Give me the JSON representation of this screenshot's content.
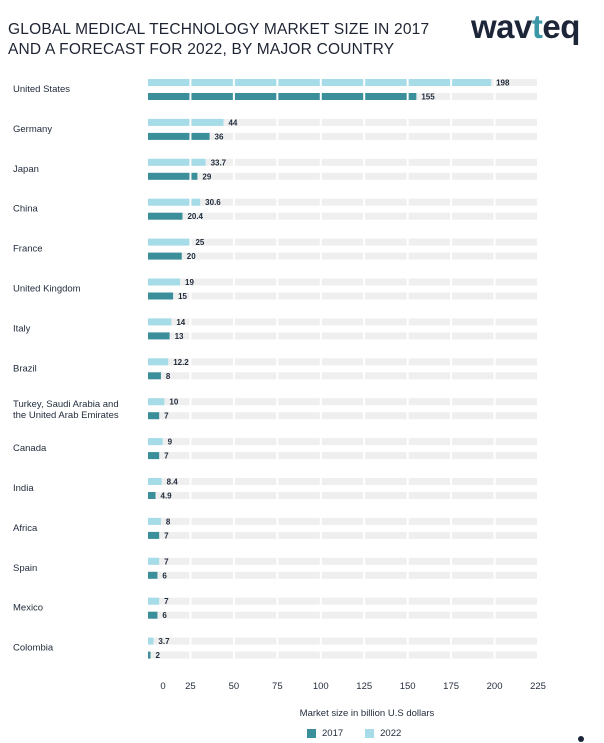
{
  "header": {
    "title_line1": "GLOBAL MEDICAL TECHNOLOGY MARKET SIZE IN 2017",
    "title_line2": "AND A FORECAST FOR 2022, BY MAJOR COUNTRY",
    "logo_prefix": "wav",
    "logo_accent": "t",
    "logo_suffix": "eq"
  },
  "colors": {
    "series_2017": "#3a8f9a",
    "series_2022": "#a6dbe8",
    "grid_cell": "#efefef",
    "text": "#1f2a3a"
  },
  "chart_data": {
    "type": "bar",
    "orientation": "horizontal",
    "title": "GLOBAL MEDICAL TECHNOLOGY MARKET SIZE IN 2017 AND A FORECAST FOR 2022, BY MAJOR COUNTRY",
    "xlabel": "Market size in billion U.S dollars",
    "xlim": [
      0,
      225
    ],
    "xticks": [
      0,
      25,
      50,
      75,
      100,
      125,
      150,
      175,
      200,
      225
    ],
    "legend_position": "bottom",
    "categories": [
      "United States",
      "Germany",
      "Japan",
      "China",
      "France",
      "United Kingdom",
      "Italy",
      "Brazil",
      "Turkey, Saudi Arabia and the United Arab Emirates",
      "Canada",
      "India",
      "Africa",
      "Spain",
      "Mexico",
      "Colombia"
    ],
    "series": [
      {
        "name": "2022",
        "values": [
          198,
          44,
          33.7,
          30.6,
          25,
          19,
          14,
          12.2,
          10,
          9,
          8.4,
          8,
          7,
          7,
          3.7
        ]
      },
      {
        "name": "2017",
        "values": [
          155,
          36,
          29,
          20.4,
          20,
          15,
          13,
          8,
          7,
          7,
          4.9,
          7,
          6,
          6,
          2
        ]
      }
    ],
    "value_labels_2022": [
      "198",
      "44",
      "33.7",
      "30.6",
      "25",
      "19",
      "14",
      "12.2",
      "10",
      "9",
      "8.4",
      "8",
      "7",
      "7",
      "3.7"
    ],
    "value_labels_2017": [
      "155",
      "36",
      "29",
      "20.4",
      "20",
      "15",
      "13",
      "8",
      "7",
      "7",
      "4.9",
      "7",
      "6",
      "6",
      "2"
    ]
  }
}
